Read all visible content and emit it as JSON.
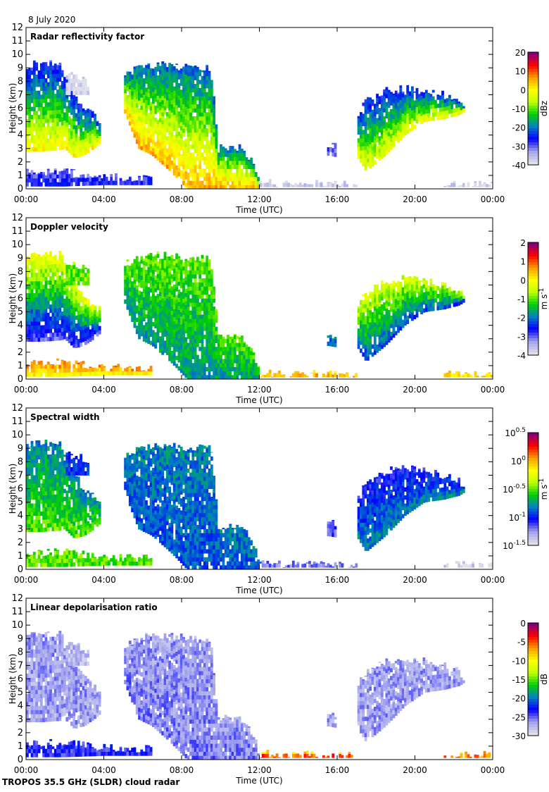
{
  "date": "8 July 2020",
  "footer": "TROPOS 35.5 GHz (SLDR) cloud radar",
  "chart_data": [
    {
      "type": "heatmap",
      "title": "Radar reflectivity factor",
      "xlabel": "Time (UTC)",
      "ylabel": "Height (km)",
      "xticks": [
        "00:00",
        "04:00",
        "08:00",
        "12:00",
        "16:00",
        "20:00",
        "00:00"
      ],
      "yticks": [
        "0",
        "1",
        "2",
        "3",
        "4",
        "5",
        "6",
        "7",
        "8",
        "9",
        "10",
        "11",
        "12"
      ],
      "xlim_hours": [
        0,
        24
      ],
      "ylim_km": [
        0,
        12
      ],
      "colorbar": {
        "unit": "dBz",
        "range": [
          -40,
          20
        ],
        "scale": "linear",
        "ticks": [
          "20",
          "10",
          "0",
          "-10",
          "-20",
          "-30",
          "-40"
        ]
      },
      "features": {
        "A": [
          -28,
          0
        ],
        "B": [
          -30,
          -28
        ],
        "C": [
          -22,
          5
        ],
        "D": [
          -28,
          -2
        ],
        "E": [
          -30,
          -30
        ],
        "F": [
          -40,
          -38
        ],
        "G": [
          -40,
          -40
        ],
        "H": [
          -40,
          -39
        ]
      }
    },
    {
      "type": "heatmap",
      "title": "Doppler velocity",
      "xlabel": "Time (UTC)",
      "ylabel": "Height (km)",
      "xticks": [
        "00:00",
        "04:00",
        "08:00",
        "12:00",
        "16:00",
        "20:00",
        "00:00"
      ],
      "yticks": [
        "0",
        "1",
        "2",
        "3",
        "4",
        "5",
        "6",
        "7",
        "8",
        "9",
        "10",
        "11",
        "12"
      ],
      "xlim_hours": [
        0,
        24
      ],
      "ylim_km": [
        0,
        12
      ],
      "colorbar": {
        "unit": "m s",
        "unit_sup": "-1",
        "range": [
          -4,
          2
        ],
        "scale": "linear",
        "ticks": [
          "2",
          "1",
          "0",
          "-1",
          "-2",
          "-3",
          "-4"
        ]
      },
      "features": {
        "A": [
          0,
          -3
        ],
        "B": [
          1,
          0
        ],
        "C": [
          -1,
          -1.8
        ],
        "D": [
          -0.3,
          -2.3
        ],
        "E": [
          -2,
          -2
        ],
        "F": [
          0.3,
          0.5
        ],
        "G": [
          -1,
          -1
        ],
        "H": [
          0.3,
          0.3
        ]
      }
    },
    {
      "type": "heatmap",
      "title": "Spectral width",
      "xlabel": "Time (UTC)",
      "ylabel": "Height (km)",
      "xticks": [
        "00:00",
        "04:00",
        "08:00",
        "12:00",
        "16:00",
        "20:00",
        "00:00"
      ],
      "yticks": [
        "0",
        "1",
        "2",
        "3",
        "4",
        "5",
        "6",
        "7",
        "8",
        "9",
        "10",
        "11",
        "12"
      ],
      "xlim_hours": [
        0,
        24
      ],
      "ylim_km": [
        0,
        12
      ],
      "colorbar": {
        "unit": "m s",
        "unit_sup": "-1",
        "range": [
          0.0316,
          3.16
        ],
        "scale": "log",
        "ticks": [
          [
            "10",
            "0.5"
          ],
          [
            "10",
            "0"
          ],
          [
            "10",
            "-0.5"
          ],
          [
            "10",
            "-1"
          ],
          [
            "10",
            "-1.5"
          ]
        ]
      },
      "features": {
        "A": [
          0.15,
          0.3
        ],
        "B": [
          0.3,
          0.3
        ],
        "C": [
          0.15,
          0.12
        ],
        "D": [
          0.08,
          0.15
        ],
        "E": [
          0.07,
          0.07
        ],
        "F": [
          0.06,
          0.06
        ],
        "G": [
          0.1,
          0.1
        ],
        "H": [
          0.035,
          0.035
        ]
      }
    },
    {
      "type": "heatmap",
      "title": "Linear depolarisation ratio",
      "xlabel": "Time (UTC)",
      "ylabel": "Height (km)",
      "xticks": [
        "00:00",
        "04:00",
        "08:00",
        "12:00",
        "16:00",
        "20:00",
        "00:00"
      ],
      "yticks": [
        "0",
        "1",
        "2",
        "3",
        "4",
        "5",
        "6",
        "7",
        "8",
        "9",
        "10",
        "11",
        "12"
      ],
      "xlim_hours": [
        0,
        24
      ],
      "ylim_km": [
        0,
        12
      ],
      "colorbar": {
        "unit": "dB",
        "range": [
          -30,
          0
        ],
        "scale": "linear",
        "ticks": [
          "0",
          "-5",
          "-10",
          "-15",
          "-20",
          "-25",
          "-30"
        ]
      },
      "features": {
        "A": [
          -27,
          -27
        ],
        "B": [
          -24,
          -24
        ],
        "C": [
          -27,
          -26
        ],
        "D": [
          -27,
          -27
        ],
        "E": [
          -27,
          -27
        ],
        "F": [
          -10,
          -5
        ],
        "G": [
          -28,
          -28
        ],
        "H": [
          -8,
          -6
        ]
      }
    }
  ],
  "cloud_features": {
    "A": [
      [
        0,
        2.8,
        9.2
      ],
      [
        0.8,
        2.8,
        9.4
      ],
      [
        1.8,
        2.9,
        9.3
      ],
      [
        2.0,
        3.0,
        8.5
      ],
      [
        2.5,
        2.3,
        7
      ],
      [
        3,
        2.5,
        6
      ],
      [
        3.5,
        3,
        5.5
      ],
      [
        3.9,
        3.5,
        5
      ]
    ],
    "B": [
      [
        0,
        0.2,
        1.2
      ],
      [
        2,
        0.2,
        1.3
      ],
      [
        4,
        0.3,
        0.9
      ],
      [
        6.5,
        0.3,
        0.8
      ]
    ],
    "C": [
      [
        5,
        6,
        8.5
      ],
      [
        5.8,
        3,
        9
      ],
      [
        6.5,
        2.5,
        9.2
      ],
      [
        7.5,
        1.2,
        9.2
      ],
      [
        8.3,
        0,
        9
      ],
      [
        9.5,
        0,
        9
      ],
      [
        9.9,
        0,
        3.2
      ],
      [
        11.2,
        0,
        3
      ],
      [
        11.8,
        0,
        1.5
      ],
      [
        12,
        0,
        0.3
      ]
    ],
    "D": [
      [
        17,
        2.5,
        5.5
      ],
      [
        17.5,
        1.3,
        6.5
      ],
      [
        18.5,
        2.5,
        7.3
      ],
      [
        19.5,
        4,
        7.5
      ],
      [
        20.5,
        5,
        7.3
      ],
      [
        21.5,
        5.2,
        7
      ],
      [
        22.3,
        5.5,
        6.5
      ],
      [
        22.6,
        5.8,
        6
      ]
    ],
    "E": [
      [
        15.5,
        2.5,
        3.3
      ],
      [
        15.9,
        2.4,
        3.4
      ]
    ],
    "F": [
      [
        12,
        0.15,
        0.45
      ],
      [
        17,
        0.15,
        0.35
      ]
    ],
    "G": [
      [
        2,
        7,
        8.8
      ],
      [
        3.3,
        7,
        8
      ]
    ],
    "H": [
      [
        21.5,
        0.15,
        0.35
      ],
      [
        24,
        0.15,
        0.35
      ]
    ]
  },
  "colormap": [
    "#e0e0ea",
    "#a0a0f0",
    "#0000ff",
    "#0080c0",
    "#00d000",
    "#c0ff00",
    "#ffff00",
    "#ffa000",
    "#ff0000",
    "#800080"
  ]
}
